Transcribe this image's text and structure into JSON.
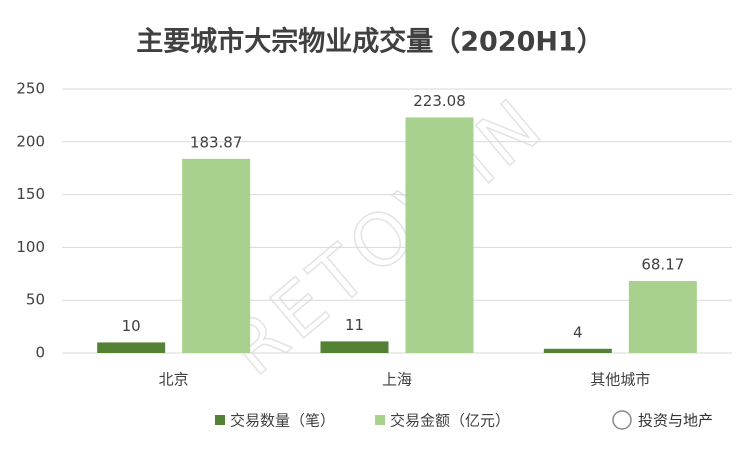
{
  "chart_data": {
    "type": "bar",
    "title": "主要城市大宗物业成交量（2020H1）",
    "categories": [
      "北京",
      "上海",
      "其他城市"
    ],
    "series": [
      {
        "name": "交易数量（笔）",
        "color": "#548235",
        "values": [
          10,
          11,
          4
        ]
      },
      {
        "name": "交易金额（亿元）",
        "color": "#a9d18e",
        "values": [
          183.87,
          223.08,
          68.17
        ]
      }
    ],
    "ylim": [
      0,
      250
    ],
    "yticks": [
      0,
      50,
      100,
      150,
      200,
      250
    ],
    "grid": true,
    "legend": "bottom",
    "watermark": "RETOWIN",
    "brand": "投资与地产"
  }
}
